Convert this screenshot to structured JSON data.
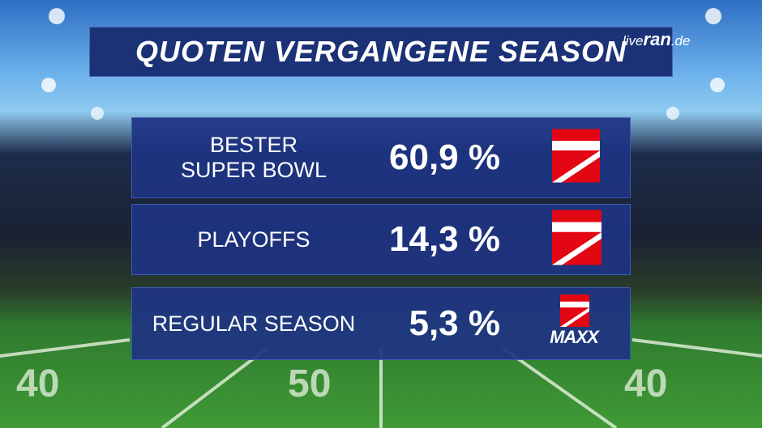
{
  "header": {
    "title": "QUOTEN VERGANGENE SEASON",
    "brand": {
      "prefix": "live",
      "name": "ran",
      "suffix": ".de"
    }
  },
  "table": {
    "rows": [
      {
        "label": [
          "BESTER",
          "SUPER BOWL"
        ],
        "value": "60,9 %"
      },
      {
        "label": [
          "PLAYOFFS"
        ],
        "value": "14,3 %"
      },
      {
        "label": [
          "REGULAR SEASON"
        ],
        "value": "5,3 %",
        "logo_text": "MAXX"
      }
    ]
  }
}
